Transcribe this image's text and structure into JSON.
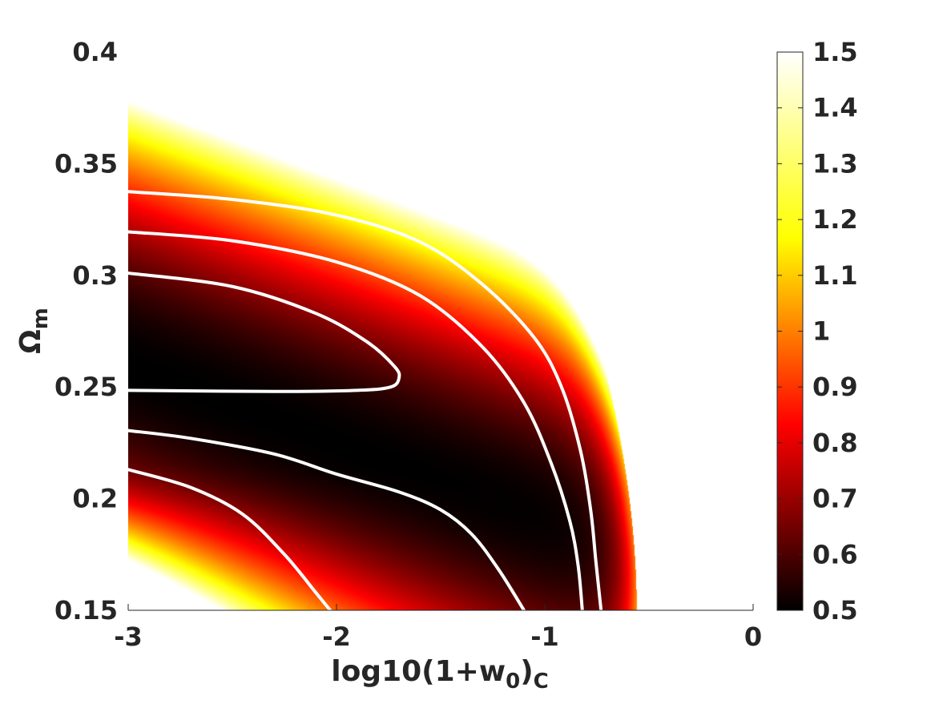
{
  "chart_data": {
    "type": "heatmap",
    "title": "",
    "xlabel": {
      "main": "log10(1+w",
      "sub": "0",
      "close": ")",
      "sub2": "C"
    },
    "ylabel": {
      "main": "Ω",
      "sub": "m"
    },
    "xlim": [
      -3,
      0
    ],
    "ylim": [
      0.15,
      0.4
    ],
    "x_ticks": [
      "-3",
      "-2",
      "-1",
      "0"
    ],
    "y_ticks": [
      "0.15",
      "0.2",
      "0.25",
      "0.3",
      "0.35",
      "0.4"
    ],
    "colorbar": {
      "range": [
        0.5,
        1.5
      ],
      "colormap": "hot",
      "ticks": [
        "0.5",
        "0.6",
        "0.7",
        "0.8",
        "0.9",
        "1",
        "1.1",
        "1.2",
        "1.3",
        "1.4",
        "1.5"
      ]
    },
    "grid": false,
    "contour_color": "#ffffff",
    "contours": [
      {
        "level": "inner",
        "points": [
          [
            -3,
            0.301
          ],
          [
            -2.5,
            0.295
          ],
          [
            -2.1,
            0.283
          ],
          [
            -1.85,
            0.27
          ],
          [
            -1.72,
            0.259
          ],
          [
            -1.7,
            0.254
          ],
          [
            -1.74,
            0.25
          ],
          [
            -1.9,
            0.2485
          ],
          [
            -2.3,
            0.248
          ],
          [
            -3,
            0.2485
          ]
        ]
      },
      {
        "level": "middle-upper",
        "points": [
          [
            -3,
            0.3195
          ],
          [
            -2.5,
            0.3155
          ],
          [
            -2,
            0.306
          ],
          [
            -1.6,
            0.291
          ],
          [
            -1.3,
            0.268
          ],
          [
            -1.1,
            0.243
          ],
          [
            -0.97,
            0.216
          ],
          [
            -0.88,
            0.19
          ],
          [
            -0.84,
            0.17
          ],
          [
            -0.82,
            0.15
          ]
        ]
      },
      {
        "level": "outer-upper",
        "points": [
          [
            -3,
            0.3375
          ],
          [
            -2.5,
            0.334
          ],
          [
            -2,
            0.327
          ],
          [
            -1.6,
            0.315
          ],
          [
            -1.3,
            0.296
          ],
          [
            -1.05,
            0.272
          ],
          [
            -0.92,
            0.25
          ],
          [
            -0.83,
            0.222
          ],
          [
            -0.78,
            0.195
          ],
          [
            -0.755,
            0.172
          ],
          [
            -0.73,
            0.15
          ]
        ]
      },
      {
        "level": "middle-lower",
        "points": [
          [
            -3,
            0.2305
          ],
          [
            -2.7,
            0.227
          ],
          [
            -2.3,
            0.22
          ],
          [
            -2,
            0.211
          ],
          [
            -1.7,
            0.203
          ],
          [
            -1.5,
            0.195
          ],
          [
            -1.35,
            0.184
          ],
          [
            -1.22,
            0.168
          ],
          [
            -1.1,
            0.15
          ]
        ]
      },
      {
        "level": "outer-lower",
        "points": [
          [
            -3,
            0.213
          ],
          [
            -2.7,
            0.205
          ],
          [
            -2.45,
            0.193
          ],
          [
            -2.25,
            0.175
          ],
          [
            -2.1,
            0.158
          ],
          [
            -2.03,
            0.15
          ]
        ]
      }
    ]
  }
}
